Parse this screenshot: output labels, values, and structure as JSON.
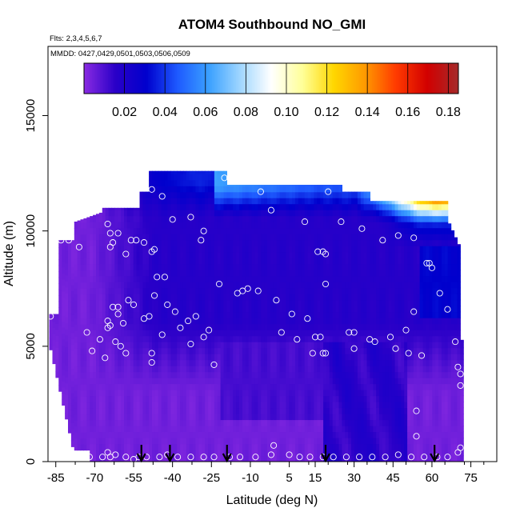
{
  "chart_data": {
    "type": "scatter",
    "title": "ATOM4 Southbound NO_GMI",
    "flights_label": "Flts: 2,3,4,5,6,7",
    "dates_label": "MMDD: 0427,0429,0501,0503,0506,0509",
    "xlabel": "Latitude (deg N)",
    "ylabel": "Altitude (m)",
    "xlim": [
      -88,
      85
    ],
    "ylim": [
      0,
      18000
    ],
    "x_ticks": [
      -85,
      -70,
      -55,
      -40,
      -25,
      -10,
      5,
      15,
      30,
      45,
      60,
      75
    ],
    "x_tick_labels": [
      "-85",
      "-70",
      "-55",
      "-40",
      "-25",
      "-10",
      "5",
      "15",
      "30",
      "45",
      "60",
      "75"
    ],
    "y_ticks": [
      0,
      5000,
      10000,
      15000
    ],
    "y_tick_labels": [
      "0",
      "5000",
      "10000",
      "15000"
    ],
    "colorbar": {
      "min": 0.0,
      "max": 0.185,
      "ticks": [
        0.02,
        0.04,
        0.06,
        0.08,
        0.1,
        0.12,
        0.14,
        0.16,
        0.18
      ],
      "tick_labels": [
        "0.02",
        "0.04",
        "0.06",
        "0.08",
        "0.10",
        "0.12",
        "0.14",
        "0.16",
        "0.18"
      ],
      "colors": [
        "#8a2be2",
        "#2a00c8",
        "#0000cd",
        "#1e5aff",
        "#3aa0ff",
        "#9fd6ff",
        "#ffffff",
        "#ffff99",
        "#ffd700",
        "#ff9a00",
        "#ff3a00",
        "#d20000",
        "#a52a2a"
      ]
    },
    "descent_markers": [
      -52,
      -41,
      -19,
      19,
      61
    ],
    "points": [
      [
        -87,
        6300
      ],
      [
        -83,
        9600
      ],
      [
        -80,
        9600
      ],
      [
        -76,
        9300
      ],
      [
        -73,
        5600
      ],
      [
        -71,
        4800
      ],
      [
        -68,
        5300
      ],
      [
        -66,
        4500
      ],
      [
        -65,
        6100
      ],
      [
        -65,
        5800
      ],
      [
        -64,
        5900
      ],
      [
        -63,
        6700
      ],
      [
        -62,
        5200
      ],
      [
        -61,
        6400
      ],
      [
        -61,
        6700
      ],
      [
        -60,
        5000
      ],
      [
        -59,
        6000
      ],
      [
        -58,
        4700
      ],
      [
        -57,
        7000
      ],
      [
        -55,
        6800
      ],
      [
        -65,
        10300
      ],
      [
        -64,
        9900
      ],
      [
        -63,
        9500
      ],
      [
        -61,
        9900
      ],
      [
        -64,
        9300
      ],
      [
        -58,
        9000
      ],
      [
        -56,
        9600
      ],
      [
        -54,
        9600
      ],
      [
        -51,
        9500
      ],
      [
        -48,
        9100
      ],
      [
        -47,
        9200
      ],
      [
        -46,
        8000
      ],
      [
        -43,
        8000
      ],
      [
        -49,
        6300
      ],
      [
        -51,
        6200
      ],
      [
        -47,
        7200
      ],
      [
        -44,
        5500
      ],
      [
        -48,
        4700
      ],
      [
        -48,
        4300
      ],
      [
        -42,
        6800
      ],
      [
        -39,
        6500
      ],
      [
        -37,
        5800
      ],
      [
        -34,
        6100
      ],
      [
        -33,
        5100
      ],
      [
        -31,
        6300
      ],
      [
        -28,
        5400
      ],
      [
        -26,
        5700
      ],
      [
        -24,
        4200
      ],
      [
        -22,
        7700
      ],
      [
        -53,
        12000
      ],
      [
        -48,
        11800
      ],
      [
        -64,
        11700
      ],
      [
        -59,
        11500
      ],
      [
        -44,
        11500
      ],
      [
        -40,
        10500
      ],
      [
        -33,
        10600
      ],
      [
        -28,
        10000
      ],
      [
        -29,
        9600
      ],
      [
        -20,
        12300
      ],
      [
        -18,
        12300
      ],
      [
        -6,
        11700
      ],
      [
        -15,
        7300
      ],
      [
        -13,
        7400
      ],
      [
        -11,
        7500
      ],
      [
        -7,
        7400
      ],
      [
        -2,
        10900
      ],
      [
        0,
        7000
      ],
      [
        2,
        5600
      ],
      [
        6,
        6400
      ],
      [
        8,
        5300
      ],
      [
        12,
        6200
      ],
      [
        14,
        4700
      ],
      [
        15,
        5400
      ],
      [
        17,
        5400
      ],
      [
        18,
        4700
      ],
      [
        19,
        4700
      ],
      [
        19,
        7700
      ],
      [
        16,
        9100
      ],
      [
        18,
        9100
      ],
      [
        19,
        9000
      ],
      [
        11,
        10400
      ],
      [
        20,
        11700
      ],
      [
        25,
        10400
      ],
      [
        28,
        5600
      ],
      [
        30,
        5600
      ],
      [
        30,
        4900
      ],
      [
        33,
        10100
      ],
      [
        36,
        5300
      ],
      [
        38,
        5200
      ],
      [
        41,
        9600
      ],
      [
        44,
        5400
      ],
      [
        46,
        4900
      ],
      [
        47,
        9800
      ],
      [
        50,
        5700
      ],
      [
        51,
        4700
      ],
      [
        53,
        9700
      ],
      [
        53,
        6500
      ],
      [
        54,
        2200
      ],
      [
        54,
        1100
      ],
      [
        56,
        4600
      ],
      [
        58,
        8600
      ],
      [
        59,
        8600
      ],
      [
        60,
        8400
      ],
      [
        63,
        7300
      ],
      [
        66,
        6600
      ],
      [
        69,
        5200
      ],
      [
        70,
        4100
      ],
      [
        71,
        3800
      ],
      [
        71,
        3300
      ],
      [
        71,
        600
      ],
      [
        -79,
        200
      ],
      [
        -72,
        200
      ],
      [
        -67,
        200
      ],
      [
        -65,
        400
      ],
      [
        -64,
        200
      ],
      [
        -62,
        300
      ],
      [
        -58,
        200
      ],
      [
        -55,
        100
      ],
      [
        -53,
        200
      ],
      [
        -50,
        200
      ],
      [
        -45,
        200
      ],
      [
        -42,
        300
      ],
      [
        -38,
        200
      ],
      [
        -33,
        200
      ],
      [
        -28,
        200
      ],
      [
        -24,
        200
      ],
      [
        -18,
        200
      ],
      [
        -14,
        200
      ],
      [
        -8,
        200
      ],
      [
        -2,
        300
      ],
      [
        -1,
        700
      ],
      [
        5,
        300
      ],
      [
        9,
        200
      ],
      [
        13,
        200
      ],
      [
        18,
        200
      ],
      [
        22,
        200
      ],
      [
        27,
        200
      ],
      [
        32,
        200
      ],
      [
        37,
        200
      ],
      [
        42,
        200
      ],
      [
        47,
        300
      ],
      [
        52,
        200
      ],
      [
        57,
        200
      ],
      [
        62,
        200
      ],
      [
        66,
        200
      ],
      [
        70,
        400
      ]
    ]
  }
}
